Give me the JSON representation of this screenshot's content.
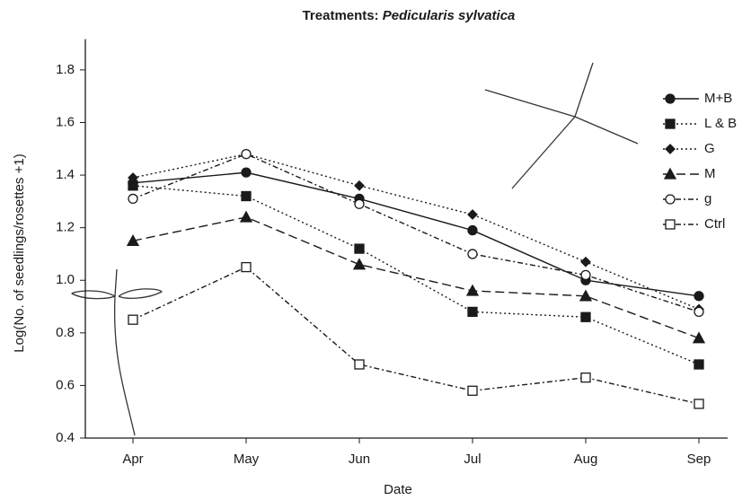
{
  "chart_data": {
    "type": "line",
    "title": "Treatments:",
    "title_italic": "Pedicularis sylvatica",
    "x_label": "Date",
    "y_label": "Log(No. of seedlings/rosettes +1)",
    "categories": [
      "Apr",
      "May",
      "Jun",
      "Jul",
      "Aug",
      "Sep"
    ],
    "ylim": [
      0.4,
      1.9
    ],
    "yticks": [
      0.4,
      0.6,
      0.8,
      {
        "value": 1,
        "label": "1.0"
      },
      1.2,
      1.4,
      1.6,
      1.8
    ],
    "grid": false,
    "legend": "upper right",
    "series": [
      {
        "name": "M+B",
        "color": "#1a1a1a",
        "marker": "circle",
        "filled": true,
        "dash": "solid",
        "values": [
          1.37,
          1.41,
          1.31,
          1.19,
          1.0,
          0.94
        ]
      },
      {
        "name": "L & B",
        "color": "#1a1a1a",
        "marker": "square",
        "filled": true,
        "dash": "dotted",
        "values": [
          1.36,
          1.32,
          1.12,
          0.88,
          0.86,
          0.68
        ]
      },
      {
        "name": "G",
        "color": "#1a1a1a",
        "marker": "diamond",
        "filled": true,
        "dash": "dotted",
        "values": [
          1.39,
          1.48,
          1.36,
          1.25,
          1.07,
          0.89
        ]
      },
      {
        "name": "M",
        "color": "#1a1a1a",
        "marker": "triangle",
        "filled": true,
        "dash": "dashed",
        "values": [
          1.15,
          1.24,
          1.06,
          0.96,
          0.94,
          0.78
        ]
      },
      {
        "name": "g",
        "color": "#1a1a1a",
        "marker": "circle",
        "filled": false,
        "dash": "dashdot",
        "values": [
          1.31,
          1.48,
          1.29,
          1.1,
          1.02,
          0.88
        ]
      },
      {
        "name": "Ctrl",
        "color": "#1a1a1a",
        "marker": "square",
        "filled": false,
        "dash": "dashdot",
        "values": [
          0.85,
          1.05,
          0.68,
          0.58,
          0.63,
          0.53
        ]
      }
    ]
  }
}
